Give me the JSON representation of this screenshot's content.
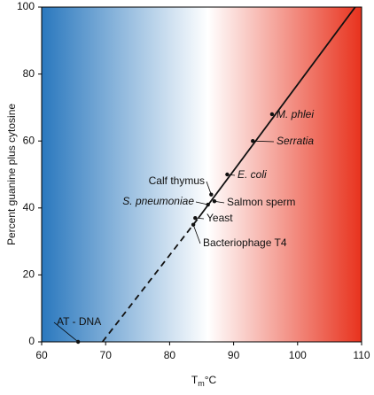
{
  "chart_data": {
    "type": "scatter",
    "xlabel": [
      "T",
      "m",
      "°C"
    ],
    "ylabel": "Percent guanine plus cytosine",
    "xlim": [
      60,
      110
    ],
    "xticks": [
      60,
      70,
      80,
      90,
      100,
      110
    ],
    "ylim": [
      0,
      100
    ],
    "yticks": [
      0,
      20,
      40,
      60,
      80,
      100
    ],
    "background": [
      "#2a78be",
      "#ffffff",
      "#e8321d"
    ],
    "color": "#111111",
    "points": [
      {
        "name": "M. phlei",
        "x": 96,
        "y": 68,
        "italic": true
      },
      {
        "name": "Serratia",
        "x": 93,
        "y": 60,
        "italic": true
      },
      {
        "name": "E. coli",
        "x": 89,
        "y": 50,
        "italic": true
      },
      {
        "name": "Calf thymus",
        "x": 86.5,
        "y": 44,
        "italic": false
      },
      {
        "name": "Salmon sperm",
        "x": 87,
        "y": 42,
        "italic": false
      },
      {
        "name": "S. pneumoniae",
        "x": 86,
        "y": 41,
        "italic": true
      },
      {
        "name": "Yeast",
        "x": 84,
        "y": 37,
        "italic": false
      },
      {
        "name": "Bacteriophage T4",
        "x": 83.7,
        "y": 35,
        "italic": false
      },
      {
        "name": "AT - DNA",
        "x": 65.7,
        "y": 0,
        "italic": false
      }
    ],
    "fit": {
      "dashed": {
        "x": [
          69.5,
          84.5
        ],
        "y": [
          0,
          37
        ]
      },
      "solid": {
        "x": [
          84.5,
          109
        ],
        "y": [
          37,
          100
        ]
      }
    }
  }
}
